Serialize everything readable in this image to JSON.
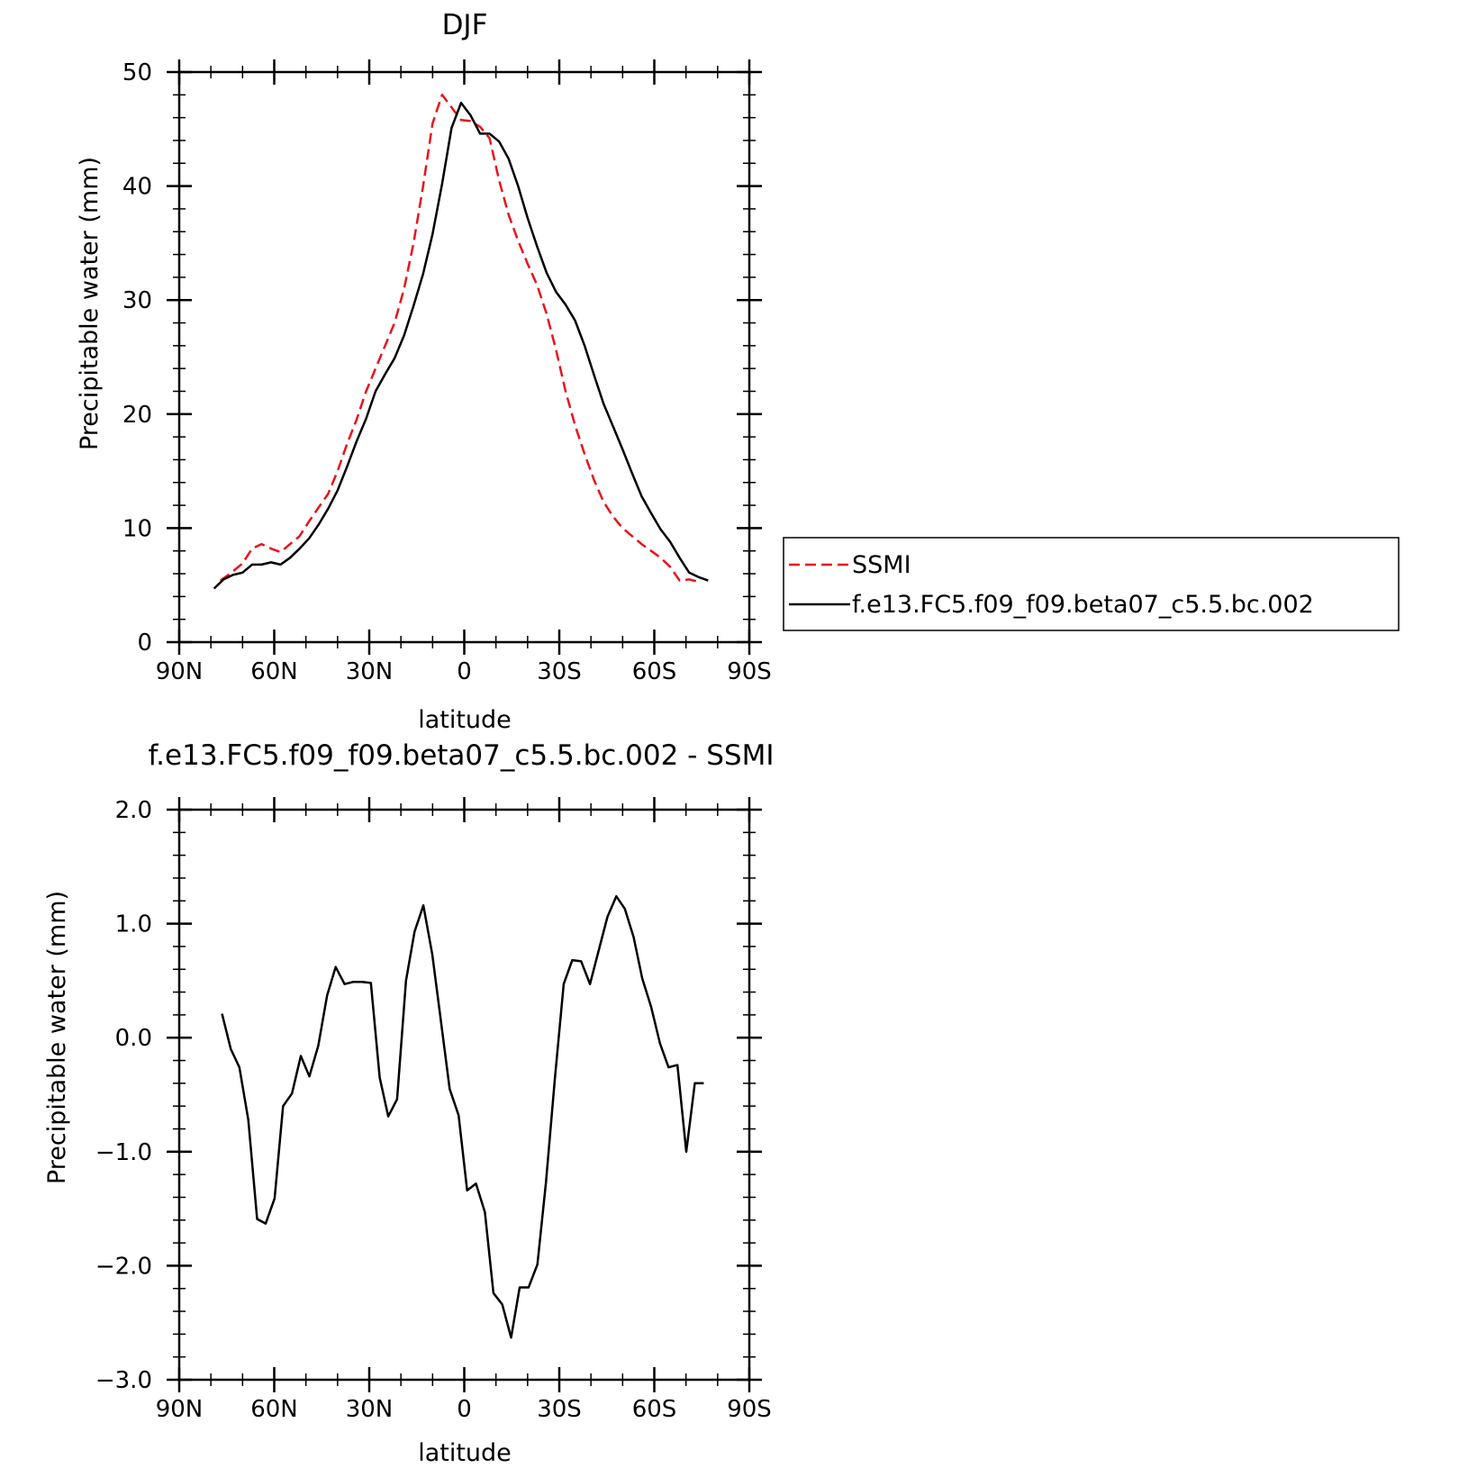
{
  "chart_data": [
    {
      "type": "line",
      "title": "DJF",
      "xlabel": "latitude",
      "ylabel": "Precipitable water (mm)",
      "xlim": [
        90,
        -90
      ],
      "ylim": [
        0,
        50
      ],
      "x_tick_values": [
        90,
        60,
        30,
        0,
        -30,
        -60,
        -90
      ],
      "x_tick_labels": [
        "90N",
        "60N",
        "30N",
        "0",
        "30S",
        "60S",
        "90S"
      ],
      "y_tick_values": [
        0,
        10,
        20,
        30,
        40,
        50
      ],
      "y_tick_labels": [
        "0",
        "10",
        "20",
        "30",
        "40",
        "50"
      ],
      "grid": false,
      "legend_position": "right",
      "series": [
        {
          "name": "SSMI",
          "color": "#e8141b",
          "dash": "dashed",
          "x": [
            77,
            74,
            70,
            67,
            64,
            61,
            58,
            55,
            52,
            49,
            46,
            43,
            40,
            37,
            34,
            31,
            28,
            25,
            22,
            19,
            16,
            13,
            10,
            7,
            4,
            1,
            -2,
            -5,
            -8,
            -11,
            -14,
            -17,
            -20,
            -23,
            -26,
            -29,
            -32,
            -35,
            -38,
            -41,
            -44,
            -47,
            -50,
            -53,
            -56,
            -59,
            -62,
            -65,
            -68,
            -71,
            -74
          ],
          "y": [
            5.4,
            6.0,
            6.9,
            8.2,
            8.6,
            8.2,
            7.9,
            8.6,
            9.3,
            10.6,
            11.8,
            13.0,
            15.0,
            17.4,
            19.5,
            22.0,
            24.0,
            26.0,
            28.0,
            31.0,
            35.0,
            40.0,
            45.5,
            48.0,
            46.9,
            45.8,
            45.7,
            45.2,
            44.2,
            40.5,
            37.5,
            35.2,
            33.2,
            31.3,
            28.8,
            25.6,
            22.0,
            19.0,
            16.5,
            14.2,
            12.3,
            11.0,
            10.0,
            9.3,
            8.6,
            8.0,
            7.4,
            6.6,
            5.4,
            5.5,
            5.3
          ]
        },
        {
          "name": "f.e13.FC5.f09_f09.beta07_c5.5.bc.002",
          "color": "#000000",
          "dash": "solid",
          "x": [
            79,
            76,
            73,
            70,
            67,
            64,
            61,
            58,
            55,
            52,
            49,
            46,
            43,
            40,
            37,
            34,
            31,
            28,
            25,
            22,
            19,
            16,
            13,
            10,
            7,
            4,
            1,
            -2,
            -5,
            -8,
            -11,
            -14,
            -17,
            -20,
            -23,
            -26,
            -29,
            -32,
            -35,
            -38,
            -41,
            -44,
            -47,
            -50,
            -53,
            -56,
            -59,
            -62,
            -65,
            -68,
            -71,
            -74,
            -77
          ],
          "y": [
            4.7,
            5.5,
            5.9,
            6.1,
            6.8,
            6.8,
            7.0,
            6.8,
            7.4,
            8.2,
            9.1,
            10.3,
            11.7,
            13.3,
            15.4,
            17.6,
            19.6,
            22.0,
            23.5,
            24.9,
            26.9,
            29.5,
            32.3,
            35.8,
            40.2,
            45.1,
            47.3,
            46.2,
            44.6,
            44.6,
            43.9,
            42.4,
            40.0,
            37.2,
            34.7,
            32.4,
            30.7,
            29.6,
            28.2,
            26.0,
            23.4,
            20.9,
            18.9,
            16.9,
            14.8,
            12.8,
            11.3,
            9.9,
            8.8,
            7.4,
            6.1,
            5.7,
            5.4
          ]
        }
      ]
    },
    {
      "type": "line",
      "title": "f.e13.FC5.f09_f09.beta07_c5.5.bc.002 - SSMI",
      "xlabel": "latitude",
      "ylabel": "Precipitable water (mm)",
      "xlim": [
        90,
        -90
      ],
      "ylim": [
        -3.0,
        2.0
      ],
      "x_tick_values": [
        90,
        60,
        30,
        0,
        -30,
        -60,
        -90
      ],
      "x_tick_labels": [
        "90N",
        "60N",
        "30N",
        "0",
        "30S",
        "60S",
        "90S"
      ],
      "y_tick_values": [
        -3.0,
        -2.0,
        -1.0,
        0.0,
        1.0,
        2.0
      ],
      "y_tick_labels": [
        "-3.0",
        "-2.0",
        "-1.0",
        "0.0",
        "1.0",
        "2.0"
      ],
      "grid": false,
      "series": [
        {
          "color": "#000000",
          "dash": "solid",
          "x": [
            76.5,
            73.7,
            71.0,
            68.2,
            65.4,
            62.7,
            59.9,
            57.2,
            54.4,
            51.6,
            48.9,
            46.1,
            43.3,
            40.6,
            37.8,
            35.0,
            32.3,
            29.5,
            26.7,
            24.0,
            21.2,
            18.4,
            15.7,
            12.9,
            10.1,
            7.4,
            4.6,
            1.8,
            -0.9,
            -3.7,
            -6.5,
            -9.2,
            -12.0,
            -14.8,
            -17.5,
            -20.3,
            -23.1,
            -25.8,
            -28.6,
            -31.4,
            -34.1,
            -36.9,
            -39.7,
            -42.4,
            -45.2,
            -48.0,
            -50.7,
            -53.5,
            -56.2,
            -59.0,
            -61.8,
            -64.5,
            -67.3,
            -70.1,
            -72.8,
            -75.6
          ],
          "y": [
            0.21,
            -0.1,
            -0.26,
            -0.72,
            -1.59,
            -1.63,
            -1.41,
            -0.6,
            -0.49,
            -0.16,
            -0.34,
            -0.07,
            0.37,
            0.62,
            0.47,
            0.49,
            0.49,
            0.48,
            -0.35,
            -0.69,
            -0.54,
            0.5,
            0.93,
            1.16,
            0.73,
            0.15,
            -0.45,
            -0.68,
            -1.34,
            -1.28,
            -1.53,
            -2.24,
            -2.34,
            -2.63,
            -2.19,
            -2.19,
            -1.99,
            -1.27,
            -0.36,
            0.47,
            0.68,
            0.67,
            0.47,
            0.76,
            1.06,
            1.24,
            1.13,
            0.88,
            0.52,
            0.27,
            -0.05,
            -0.26,
            -0.24,
            -1.0,
            -0.4,
            -0.4
          ]
        }
      ]
    }
  ]
}
